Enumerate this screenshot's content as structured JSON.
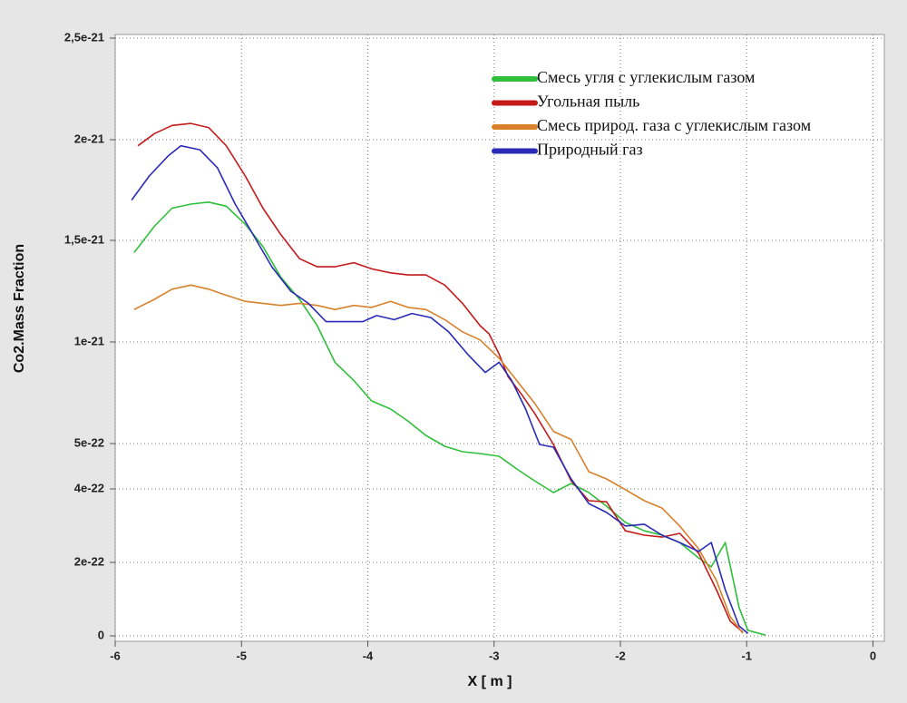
{
  "chart_data": {
    "type": "line",
    "xlabel": "X [ m ]",
    "ylabel": "Co2.Mass Fraction",
    "xlim": [
      -6,
      0.09
    ],
    "ylim": [
      -1.5e-23,
      2.52e-21
    ],
    "xticks": [
      -6,
      -5,
      -4,
      -3,
      -2,
      -1,
      0
    ],
    "yticks": [
      0,
      2e-22,
      4e-22,
      5e-22,
      1e-21,
      {
        "value": 1.5e-21,
        "label": "1,5e-21"
      },
      2e-21,
      {
        "value": 2.5e-21,
        "label": "2,5e-21"
      }
    ],
    "grid": true,
    "legend": "upper right",
    "series": [
      {
        "name": "Смесь угля с углекислым газом",
        "color": "#2fbf3a",
        "x": [
          -5.85,
          -5.69,
          -5.55,
          -5.4,
          -5.26,
          -5.12,
          -4.97,
          -4.83,
          -4.69,
          -4.54,
          -4.4,
          -4.26,
          -4.11,
          -3.97,
          -3.82,
          -3.68,
          -3.54,
          -3.39,
          -3.25,
          -3.11,
          -2.96,
          -2.82,
          -2.68,
          -2.53,
          -2.39,
          -2.25,
          -2.11,
          -1.96,
          -1.81,
          -1.67,
          -1.53,
          -1.38,
          -1.28,
          -1.17,
          -1.06,
          -0.99,
          -0.85
        ],
        "values": [
          1.44e-21,
          1.57e-21,
          1.66e-21,
          1.68e-21,
          1.69e-21,
          1.67e-21,
          1.58e-21,
          1.47e-21,
          1.32e-21,
          1.21e-21,
          1.08e-21,
          9e-22,
          8.1e-22,
          7.1e-22,
          6.7e-22,
          6.1e-22,
          5.4e-22,
          4.94e-22,
          4.82e-22,
          4.78e-22,
          4.72e-22,
          4.44e-22,
          4.18e-22,
          3.9e-22,
          4.12e-22,
          3.9e-22,
          3.53e-22,
          3.09e-22,
          2.86e-22,
          2.74e-22,
          2.54e-22,
          2.12e-22,
          1.88e-22,
          2.54e-22,
          7.7e-23,
          1.5e-23,
          2e-24
        ]
      },
      {
        "name": "Угольная пыль",
        "color": "#c41a1a",
        "x": [
          -5.82,
          -5.69,
          -5.55,
          -5.4,
          -5.26,
          -5.12,
          -4.97,
          -4.83,
          -4.69,
          -4.54,
          -4.4,
          -4.26,
          -4.11,
          -3.97,
          -3.82,
          -3.68,
          -3.54,
          -3.39,
          -3.25,
          -3.11,
          -3.04,
          -2.96,
          -2.89,
          -2.78,
          -2.68,
          -2.53,
          -2.39,
          -2.25,
          -2.11,
          -1.96,
          -1.81,
          -1.67,
          -1.53,
          -1.38,
          -1.24,
          -1.13,
          -1.03
        ],
        "values": [
          1.97e-21,
          2.03e-21,
          2.07e-21,
          2.08e-21,
          2.06e-21,
          1.97e-21,
          1.82e-21,
          1.66e-21,
          1.53e-21,
          1.41e-21,
          1.37e-21,
          1.37e-21,
          1.39e-21,
          1.36e-21,
          1.34e-21,
          1.33e-21,
          1.33e-21,
          1.28e-21,
          1.19e-21,
          1.08e-21,
          1.04e-21,
          9.4e-22,
          8.3e-22,
          7.4e-22,
          6.5e-22,
          4.98e-22,
          4.18e-22,
          3.68e-22,
          3.65e-22,
          2.86e-22,
          2.74e-22,
          2.69e-22,
          2.79e-22,
          2.25e-22,
          1.26e-22,
          4e-23,
          1e-23
        ]
      },
      {
        "name": "Смесь природ. газа с углекислым газом",
        "color": "#d9802a",
        "x": [
          -5.85,
          -5.69,
          -5.55,
          -5.4,
          -5.26,
          -5.12,
          -4.97,
          -4.83,
          -4.69,
          -4.54,
          -4.4,
          -4.26,
          -4.11,
          -3.97,
          -3.82,
          -3.68,
          -3.54,
          -3.39,
          -3.25,
          -3.11,
          -2.96,
          -2.82,
          -2.68,
          -2.53,
          -2.39,
          -2.25,
          -2.11,
          -1.96,
          -1.81,
          -1.67,
          -1.53,
          -1.38,
          -1.24,
          -1.13,
          -1.03
        ],
        "values": [
          1.16e-21,
          1.21e-21,
          1.26e-21,
          1.28e-21,
          1.26e-21,
          1.23e-21,
          1.2e-21,
          1.19e-21,
          1.18e-21,
          1.19e-21,
          1.18e-21,
          1.16e-21,
          1.18e-21,
          1.17e-21,
          1.2e-21,
          1.17e-21,
          1.16e-21,
          1.11e-21,
          1.05e-21,
          1.01e-21,
          9.2e-22,
          8.1e-22,
          7e-22,
          5.6e-22,
          5.2e-22,
          4.38e-22,
          4.22e-22,
          3.98e-22,
          3.68e-22,
          3.48e-22,
          2.99e-22,
          2.37e-22,
          1.51e-22,
          5.2e-23,
          7e-24
        ]
      },
      {
        "name": "Природный газ",
        "color": "#2a2ab8",
        "x": [
          -5.87,
          -5.73,
          -5.58,
          -5.48,
          -5.33,
          -5.19,
          -5.05,
          -4.9,
          -4.76,
          -4.61,
          -4.47,
          -4.33,
          -4.18,
          -4.04,
          -3.93,
          -3.79,
          -3.65,
          -3.5,
          -3.36,
          -3.21,
          -3.07,
          -2.96,
          -2.86,
          -2.75,
          -2.64,
          -2.53,
          -2.39,
          -2.25,
          -2.11,
          -1.96,
          -1.81,
          -1.67,
          -1.53,
          -1.38,
          -1.28,
          -1.17,
          -1.06,
          -0.99
        ],
        "values": [
          1.7e-21,
          1.82e-21,
          1.92e-21,
          1.97e-21,
          1.95e-21,
          1.86e-21,
          1.68e-21,
          1.52e-21,
          1.37e-21,
          1.25e-21,
          1.19e-21,
          1.1e-21,
          1.1e-21,
          1.1e-21,
          1.13e-21,
          1.11e-21,
          1.14e-21,
          1.12e-21,
          1.05e-21,
          9.4e-22,
          8.5e-22,
          9e-22,
          8.1e-22,
          6.7e-22,
          4.98e-22,
          4.92e-22,
          4.22e-22,
          3.6e-22,
          3.36e-22,
          2.99e-22,
          3.04e-22,
          2.74e-22,
          2.54e-22,
          2.3e-22,
          2.54e-22,
          1.26e-22,
          2.7e-23,
          7e-24
        ]
      }
    ]
  }
}
